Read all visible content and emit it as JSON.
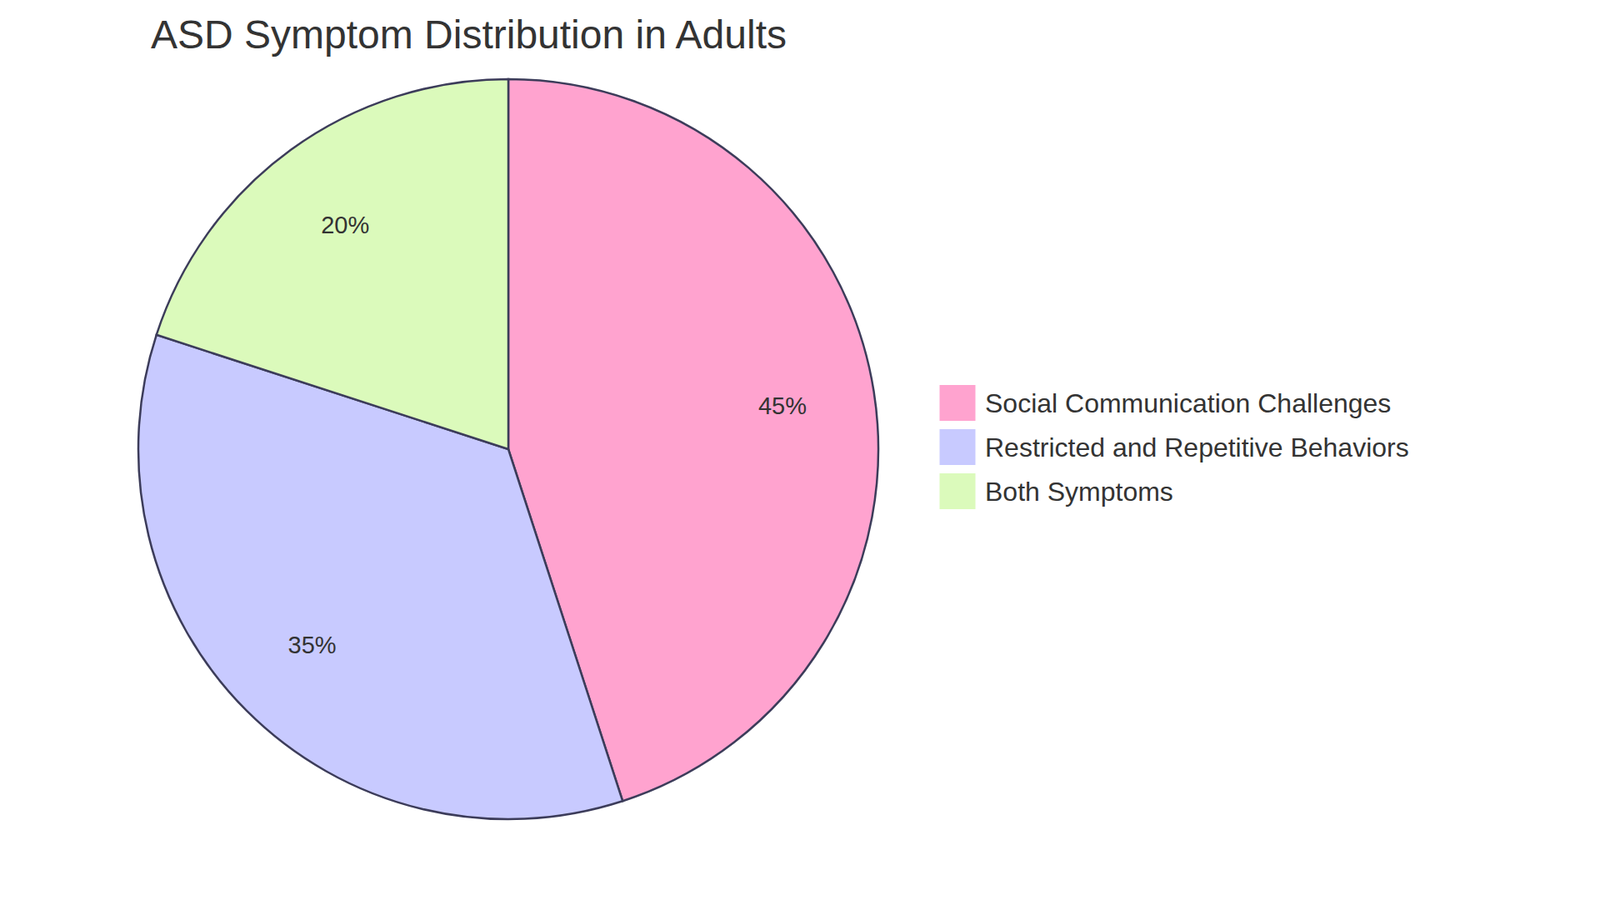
{
  "chart_data": {
    "type": "pie",
    "title": "ASD Symptom Distribution in Adults",
    "categories": [
      "Social Communication Challenges",
      "Restricted and Repetitive Behaviors",
      "Both Symptoms"
    ],
    "values": [
      45,
      35,
      20
    ],
    "value_labels": [
      "45%",
      "35%",
      "20%"
    ],
    "colors": [
      "#FFA3CF",
      "#C8CAFF",
      "#DBFABB"
    ],
    "data_labels": true,
    "legend": "right"
  }
}
